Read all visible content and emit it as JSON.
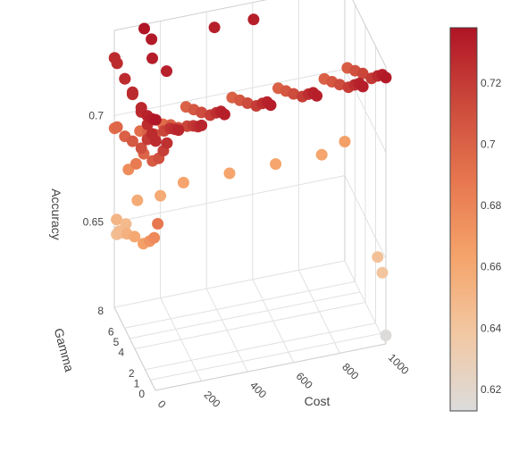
{
  "chart_data": {
    "type": "scatter3d",
    "axes": {
      "x": {
        "title": "Cost",
        "ticks": [
          "0",
          "200",
          "400",
          "600",
          "800",
          "1000"
        ],
        "range": [
          0,
          1000
        ]
      },
      "y": {
        "title": "Gamma",
        "ticks": [
          "0",
          "1",
          "2",
          "4",
          "5",
          "6",
          "8"
        ],
        "range": [
          0,
          8
        ]
      },
      "z": {
        "title": "Accuracy",
        "ticks": [
          "0.65",
          "0.7"
        ],
        "range": [
          0.61,
          0.74
        ]
      }
    },
    "colorbar": {
      "ticks": [
        "0.62",
        "0.64",
        "0.66",
        "0.68",
        "0.7",
        "0.72"
      ],
      "range": [
        0.613,
        0.738
      ],
      "colors": [
        "#dcdcdc",
        "#f2c8a3",
        "#f5a46b",
        "#e7774f",
        "#cc4a3c",
        "#b01425"
      ]
    },
    "columns": [
      {
        "cost": 1,
        "gamma": [
          0,
          0.7,
          1.6,
          2.8,
          4.5,
          6,
          7.5,
          8
        ],
        "acc": [
          0.727,
          0.727,
          0.727,
          0.727,
          0.727,
          0.727,
          0.727,
          0.727
        ]
      },
      {
        "cost": 1,
        "gamma": [
          0,
          0.7,
          1.6,
          2.8,
          4.5,
          6,
          7.5,
          8
        ],
        "acc": [
          0.737,
          0.734,
          0.731,
          0.729,
          0.728,
          0.727,
          0.727,
          0.727
        ]
      },
      {
        "cost": 1,
        "gamma": [
          1.6,
          2.8,
          4.5,
          6,
          7.5,
          8
        ],
        "acc": [
          0.72,
          0.71,
          0.705,
          0.7,
          0.697,
          0.694
        ]
      },
      {
        "cost": 10,
        "gamma": [
          0,
          0.7,
          1.6,
          2.8,
          4.5,
          6,
          7.5,
          8
        ],
        "acc": [
          0.688,
          0.678,
          0.672,
          0.665,
          0.66,
          0.654,
          0.648,
          0.644
        ]
      },
      {
        "cost": 50,
        "gamma": [
          0,
          0.7,
          1.6,
          2.8,
          4.5,
          6,
          7.5,
          8
        ],
        "acc": [
          0.725,
          0.718,
          0.71,
          0.703,
          0.698,
          0.686,
          0.676,
          0.648
        ]
      },
      {
        "cost": 100,
        "gamma": [
          0,
          0.7,
          1.6,
          2.8,
          4.5,
          6,
          7.5,
          8
        ],
        "acc": [
          0.73,
          0.727,
          0.723,
          0.716,
          0.706,
          0.7,
          0.693,
          0.658
        ]
      },
      {
        "cost": 200,
        "gamma": [
          0,
          0.7,
          1.6,
          2.8,
          4.5,
          6,
          7.5,
          8
        ],
        "acc": [
          0.73,
          0.726,
          0.722,
          0.716,
          0.707,
          0.701,
          0.694,
          0.658
        ]
      },
      {
        "cost": 300,
        "gamma": [
          0,
          0.7,
          1.6,
          2.8,
          4.5,
          6,
          7.5,
          8
        ],
        "acc": [
          0.733,
          0.731,
          0.726,
          0.719,
          0.712,
          0.706,
          0.7,
          0.662
        ]
      },
      {
        "cost": 500,
        "gamma": [
          0,
          0.7,
          1.6,
          2.8,
          4.5,
          6,
          7.5,
          8
        ],
        "acc": [
          0.733,
          0.731,
          0.726,
          0.719,
          0.712,
          0.706,
          0.7,
          0.662
        ]
      },
      {
        "cost": 700,
        "gamma": [
          0,
          0.7,
          1.6,
          2.8,
          4.5,
          6,
          7.5,
          8
        ],
        "acc": [
          0.733,
          0.731,
          0.726,
          0.719,
          0.712,
          0.706,
          0.7,
          0.662
        ]
      },
      {
        "cost": 900,
        "gamma": [
          0,
          0.7,
          1.6,
          2.8,
          4.5,
          6,
          7.5,
          8
        ],
        "acc": [
          0.733,
          0.731,
          0.726,
          0.719,
          0.712,
          0.706,
          0.7,
          0.662
        ]
      },
      {
        "cost": 1000,
        "gamma": [
          0,
          0.7,
          1.6,
          2.8,
          4.5,
          6,
          7.5,
          8
        ],
        "acc": [
          0.735,
          0.733,
          0.728,
          0.721,
          0.715,
          0.709,
          0.703,
          0.666
        ]
      }
    ],
    "extra_points": [
      {
        "cost": 130,
        "gamma": 8,
        "acc": 0.738
      },
      {
        "cost": 150,
        "gamma": 7.5,
        "acc": 0.735
      },
      {
        "cost": 120,
        "gamma": 6,
        "acc": 0.734
      },
      {
        "cost": 160,
        "gamma": 5,
        "acc": 0.732
      },
      {
        "cost": 600,
        "gamma": 7.8,
        "acc": 0.733
      },
      {
        "cost": 430,
        "gamma": 7.8,
        "acc": 0.733
      },
      {
        "cost": 1000,
        "gamma": 0,
        "acc": 0.614
      },
      {
        "cost": 1000,
        "gamma": 0.7,
        "acc": 0.64
      },
      {
        "cost": 1000,
        "gamma": 1.6,
        "acc": 0.643
      },
      {
        "cost": 10,
        "gamma": 7.5,
        "acc": 0.647
      },
      {
        "cost": 10,
        "gamma": 8,
        "acc": 0.651
      }
    ]
  }
}
